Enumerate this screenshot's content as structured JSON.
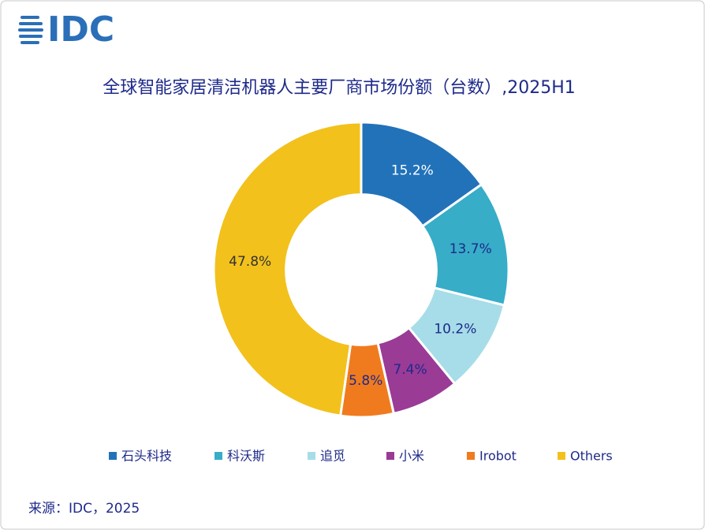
{
  "logo": "IDC",
  "chart_data": {
    "type": "pie",
    "title": "全球智能家居清洁机器人主要厂商市场份额（台数）,2025H1",
    "categories": [
      "石头科技",
      "科沃斯",
      "追觅",
      "小米",
      "Irobot",
      "Others"
    ],
    "values": [
      15.2,
      13.7,
      10.2,
      7.4,
      5.8,
      47.8
    ],
    "value_labels": [
      "15.2%",
      "13.7%",
      "10.2%",
      "7.4%",
      "5.8%",
      "47.8%"
    ],
    "colors": [
      "#2272b9",
      "#37adc8",
      "#a6dde8",
      "#9a3b95",
      "#f07b1e",
      "#f2c11c"
    ],
    "hole": 0.51,
    "legend": "bottom"
  },
  "source": "来源：IDC，2025"
}
